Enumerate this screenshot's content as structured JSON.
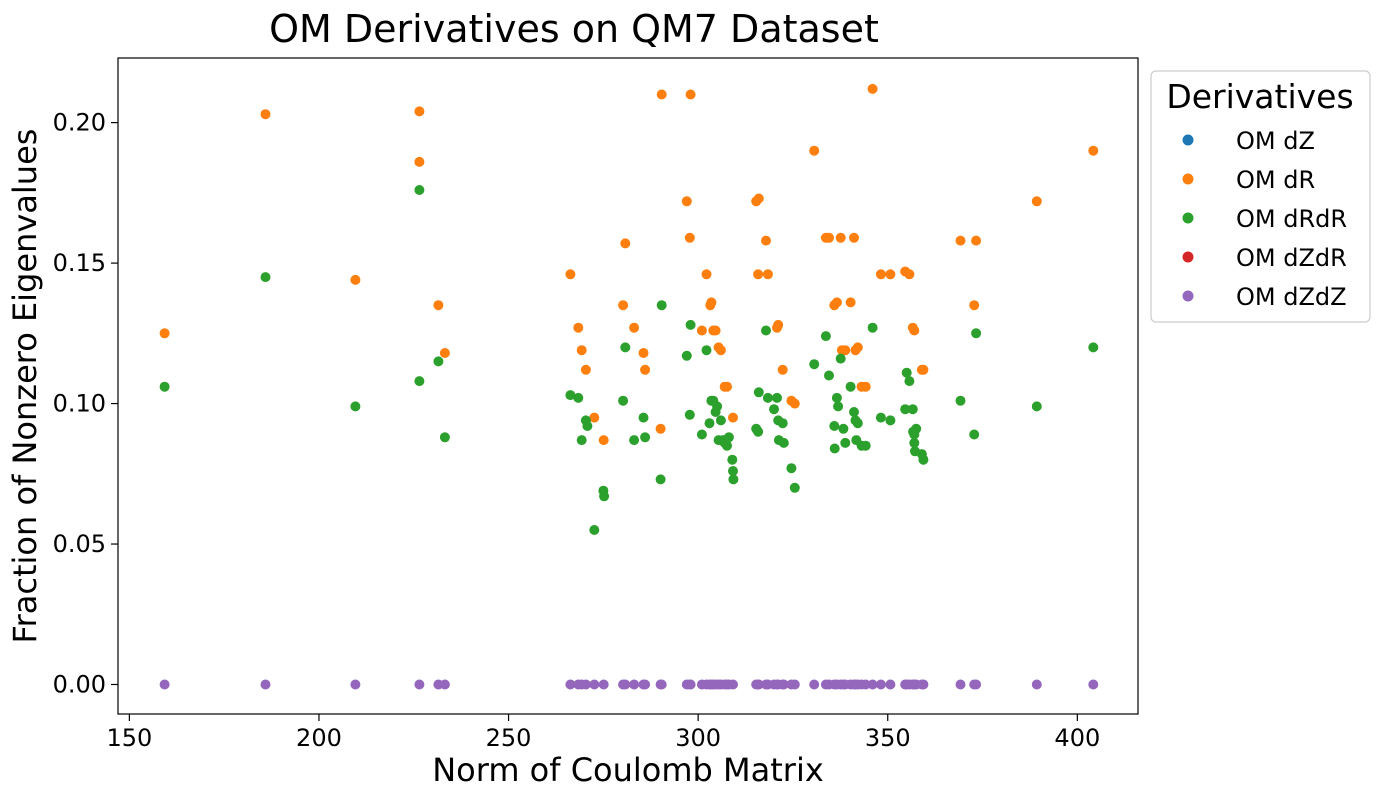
{
  "chart_data": {
    "type": "scatter",
    "title": "OM Derivatives on QM7 Dataset",
    "xlabel": "Norm of Coulomb Matrix",
    "ylabel": "Fraction of Nonzero Eigenvalues",
    "xlim": [
      147,
      416
    ],
    "ylim": [
      -0.0105,
      0.223
    ],
    "xticks": [
      150,
      200,
      250,
      300,
      350,
      400
    ],
    "xtick_labels": [
      "150",
      "200",
      "250",
      "300",
      "350",
      "400"
    ],
    "yticks": [
      0.0,
      0.05,
      0.1,
      0.15,
      0.2
    ],
    "ytick_labels": [
      "0.00",
      "0.05",
      "0.10",
      "0.15",
      "0.20"
    ],
    "grid": false,
    "legend": {
      "title": "Derivatives",
      "placement": "outside-upper-right",
      "entries": [
        "OM dZ",
        "OM dR",
        "OM dRdR",
        "OM dZdR",
        "OM dZdZ"
      ]
    },
    "series": [
      {
        "name": "OM dZ",
        "color": "#1f77b4",
        "points": []
      },
      {
        "name": "OM dR",
        "color": "#ff7f0e",
        "points": [
          [
            159.3,
            0.125
          ],
          [
            185.9,
            0.203
          ],
          [
            209.6,
            0.144
          ],
          [
            226.5,
            0.204
          ],
          [
            226.5,
            0.186
          ],
          [
            231.5,
            0.135
          ],
          [
            233.2,
            0.118
          ],
          [
            266.3,
            0.146
          ],
          [
            268.4,
            0.127
          ],
          [
            269.3,
            0.119
          ],
          [
            270.4,
            0.112
          ],
          [
            272.6,
            0.095
          ],
          [
            275.1,
            0.087
          ],
          [
            280.2,
            0.135
          ],
          [
            280.8,
            0.157
          ],
          [
            283.1,
            0.127
          ],
          [
            285.6,
            0.118
          ],
          [
            286.0,
            0.112
          ],
          [
            290.1,
            0.091
          ],
          [
            290.4,
            0.21
          ],
          [
            297.0,
            0.172
          ],
          [
            297.8,
            0.159
          ],
          [
            298.0,
            0.21
          ],
          [
            301.0,
            0.126
          ],
          [
            302.2,
            0.146
          ],
          [
            303.2,
            0.135
          ],
          [
            303.5,
            0.136
          ],
          [
            304.0,
            0.126
          ],
          [
            304.6,
            0.126
          ],
          [
            305.4,
            0.12
          ],
          [
            306.0,
            0.119
          ],
          [
            307.0,
            0.106
          ],
          [
            307.6,
            0.106
          ],
          [
            309.2,
            0.095
          ],
          [
            315.3,
            0.172
          ],
          [
            316.0,
            0.173
          ],
          [
            315.8,
            0.146
          ],
          [
            317.9,
            0.158
          ],
          [
            318.4,
            0.146
          ],
          [
            320.8,
            0.127
          ],
          [
            321.1,
            0.128
          ],
          [
            322.3,
            0.112
          ],
          [
            324.6,
            0.101
          ],
          [
            325.5,
            0.1
          ],
          [
            330.6,
            0.19
          ],
          [
            333.7,
            0.159
          ],
          [
            334.5,
            0.159
          ],
          [
            335.9,
            0.135
          ],
          [
            336.6,
            0.136
          ],
          [
            337.6,
            0.159
          ],
          [
            337.9,
            0.119
          ],
          [
            338.8,
            0.119
          ],
          [
            340.2,
            0.136
          ],
          [
            341.1,
            0.159
          ],
          [
            341.5,
            0.119
          ],
          [
            342.1,
            0.12
          ],
          [
            343.1,
            0.106
          ],
          [
            344.2,
            0.106
          ],
          [
            346.0,
            0.212
          ],
          [
            348.2,
            0.146
          ],
          [
            350.7,
            0.146
          ],
          [
            354.6,
            0.147
          ],
          [
            355.7,
            0.146
          ],
          [
            356.6,
            0.127
          ],
          [
            357.0,
            0.126
          ],
          [
            359.0,
            0.112
          ],
          [
            359.4,
            0.112
          ],
          [
            369.2,
            0.158
          ],
          [
            372.8,
            0.135
          ],
          [
            373.3,
            0.158
          ],
          [
            389.3,
            0.172
          ],
          [
            404.2,
            0.19
          ]
        ]
      },
      {
        "name": "OM dRdR",
        "color": "#2ca02c",
        "points": [
          [
            159.3,
            0.106
          ],
          [
            185.9,
            0.145
          ],
          [
            209.6,
            0.099
          ],
          [
            226.5,
            0.176
          ],
          [
            226.5,
            0.108
          ],
          [
            231.5,
            0.115
          ],
          [
            233.2,
            0.088
          ],
          [
            266.3,
            0.103
          ],
          [
            268.4,
            0.102
          ],
          [
            269.3,
            0.087
          ],
          [
            270.4,
            0.094
          ],
          [
            270.8,
            0.092
          ],
          [
            272.6,
            0.055
          ],
          [
            275.0,
            0.069
          ],
          [
            275.2,
            0.067
          ],
          [
            280.2,
            0.101
          ],
          [
            280.8,
            0.12
          ],
          [
            283.1,
            0.087
          ],
          [
            285.6,
            0.095
          ],
          [
            286.0,
            0.088
          ],
          [
            290.1,
            0.073
          ],
          [
            290.4,
            0.135
          ],
          [
            297.0,
            0.117
          ],
          [
            297.8,
            0.096
          ],
          [
            298.0,
            0.128
          ],
          [
            301.0,
            0.089
          ],
          [
            302.2,
            0.119
          ],
          [
            303.0,
            0.093
          ],
          [
            303.5,
            0.101
          ],
          [
            304.0,
            0.101
          ],
          [
            304.6,
            0.097
          ],
          [
            305.0,
            0.099
          ],
          [
            305.4,
            0.087
          ],
          [
            306.0,
            0.094
          ],
          [
            306.6,
            0.087
          ],
          [
            307.0,
            0.086
          ],
          [
            307.6,
            0.085
          ],
          [
            308.1,
            0.088
          ],
          [
            309.0,
            0.08
          ],
          [
            309.2,
            0.076
          ],
          [
            309.3,
            0.073
          ],
          [
            315.3,
            0.091
          ],
          [
            315.8,
            0.09
          ],
          [
            316.0,
            0.104
          ],
          [
            317.9,
            0.126
          ],
          [
            318.4,
            0.102
          ],
          [
            320.0,
            0.098
          ],
          [
            320.8,
            0.102
          ],
          [
            321.1,
            0.094
          ],
          [
            321.3,
            0.087
          ],
          [
            322.3,
            0.093
          ],
          [
            322.6,
            0.086
          ],
          [
            324.6,
            0.077
          ],
          [
            325.5,
            0.07
          ],
          [
            330.6,
            0.114
          ],
          [
            333.7,
            0.124
          ],
          [
            334.5,
            0.11
          ],
          [
            335.9,
            0.092
          ],
          [
            336.0,
            0.084
          ],
          [
            336.6,
            0.102
          ],
          [
            336.9,
            0.099
          ],
          [
            337.6,
            0.116
          ],
          [
            338.3,
            0.091
          ],
          [
            338.8,
            0.086
          ],
          [
            340.2,
            0.106
          ],
          [
            341.1,
            0.097
          ],
          [
            341.5,
            0.094
          ],
          [
            341.7,
            0.087
          ],
          [
            342.1,
            0.093
          ],
          [
            343.1,
            0.085
          ],
          [
            344.2,
            0.085
          ],
          [
            346.0,
            0.127
          ],
          [
            348.2,
            0.095
          ],
          [
            350.7,
            0.094
          ],
          [
            354.6,
            0.098
          ],
          [
            355.0,
            0.111
          ],
          [
            355.7,
            0.108
          ],
          [
            356.6,
            0.098
          ],
          [
            356.7,
            0.09
          ],
          [
            357.0,
            0.089
          ],
          [
            357.0,
            0.086
          ],
          [
            357.2,
            0.083
          ],
          [
            357.5,
            0.091
          ],
          [
            359.0,
            0.082
          ],
          [
            359.4,
            0.08
          ],
          [
            369.2,
            0.101
          ],
          [
            372.8,
            0.089
          ],
          [
            373.3,
            0.125
          ],
          [
            389.3,
            0.099
          ],
          [
            404.2,
            0.12
          ]
        ]
      },
      {
        "name": "OM dZdR",
        "color": "#d62728",
        "points": []
      },
      {
        "name": "OM dZdZ",
        "color": "#9467bd",
        "x_values": [
          159.3,
          185.9,
          209.6,
          226.5,
          231.5,
          233.2,
          266.3,
          268.4,
          269.3,
          270.4,
          272.6,
          275.1,
          280.2,
          280.8,
          283.1,
          285.6,
          286.0,
          290.1,
          290.4,
          297.0,
          297.8,
          298.0,
          301.0,
          302.2,
          303.0,
          303.5,
          304.0,
          304.6,
          305.4,
          306.0,
          307.0,
          307.6,
          308.1,
          309.2,
          315.3,
          315.8,
          316.0,
          317.9,
          318.4,
          320.0,
          320.8,
          321.1,
          322.3,
          322.6,
          324.6,
          325.5,
          330.6,
          333.7,
          334.5,
          335.9,
          336.6,
          337.6,
          338.3,
          338.8,
          340.2,
          341.1,
          341.5,
          342.1,
          343.1,
          344.2,
          346.0,
          348.2,
          350.7,
          354.6,
          355.0,
          355.7,
          356.6,
          357.0,
          357.5,
          359.0,
          359.4,
          369.2,
          372.8,
          373.3,
          389.3,
          404.2
        ],
        "y_value": 0.0
      }
    ]
  }
}
